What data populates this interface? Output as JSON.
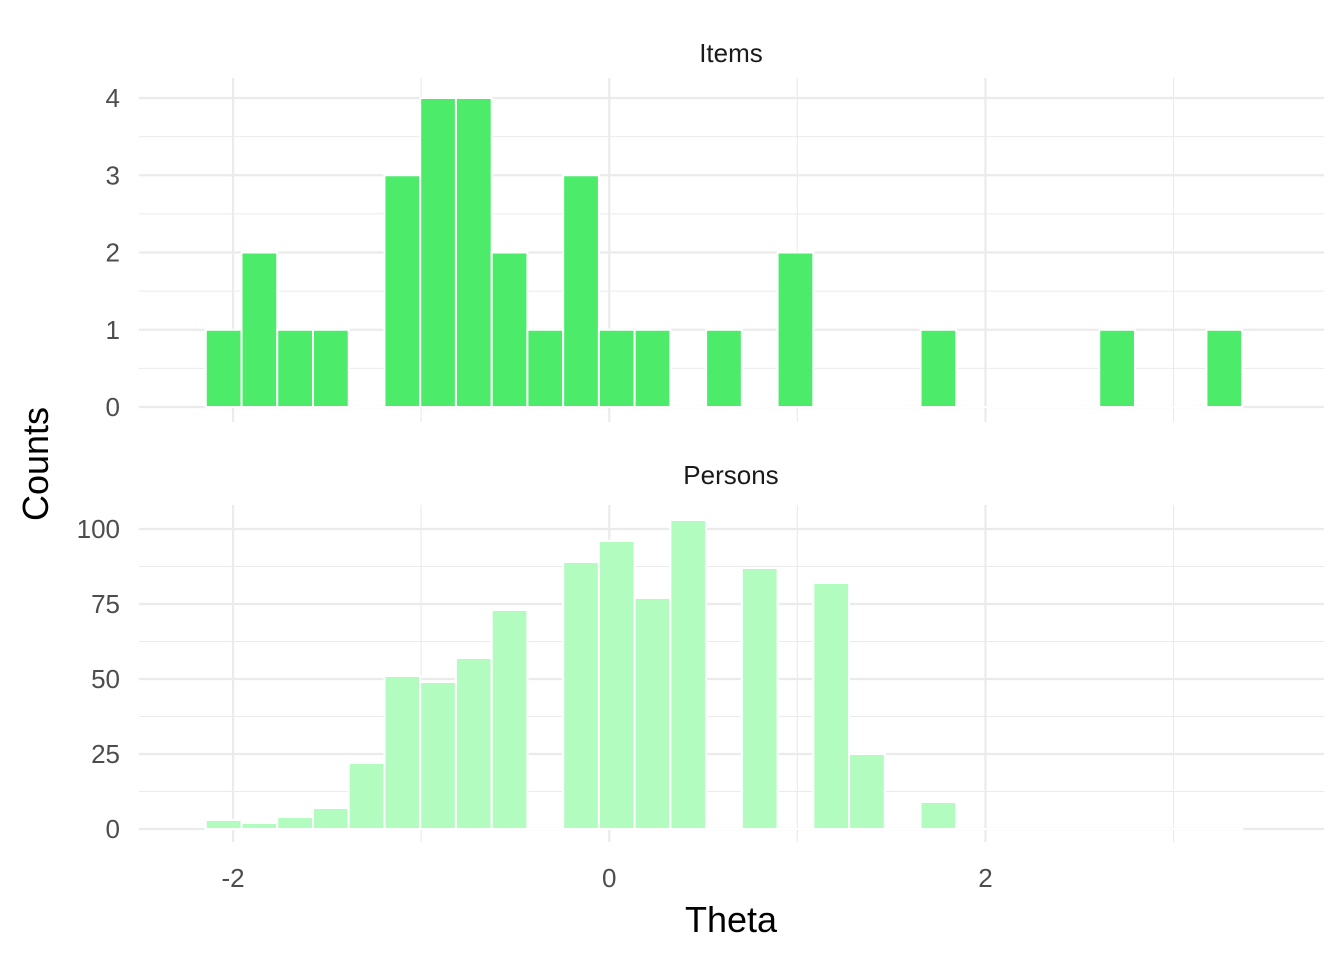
{
  "chart_data": {
    "type": "bar",
    "xlabel": "Theta",
    "ylabel": "Counts",
    "xlim": [
      -2.5,
      3.8
    ],
    "x_ticks": [
      -2,
      0,
      2
    ],
    "x_tick_labels": [
      "-2",
      "0",
      "2"
    ],
    "bin_width": 0.19,
    "bin_centers": [
      -2.05,
      -1.86,
      -1.67,
      -1.48,
      -1.29,
      -1.1,
      -0.91,
      -0.72,
      -0.53,
      -0.34,
      -0.15,
      0.04,
      0.23,
      0.42,
      0.61,
      0.8,
      0.99,
      1.18,
      1.37,
      1.56,
      1.75,
      1.94,
      2.13,
      2.32,
      2.51,
      2.7,
      2.89,
      3.08,
      3.27
    ],
    "grid": true,
    "panels": [
      {
        "label": "Items",
        "color": "#4ceb6a",
        "ylim": [
          0,
          4.25
        ],
        "y_ticks": [
          0,
          1,
          2,
          3,
          4
        ],
        "y_tick_labels": [
          "0",
          "1",
          "2",
          "3",
          "4"
        ],
        "values": [
          1,
          2,
          1,
          1,
          0,
          3,
          4,
          4,
          2,
          1,
          3,
          1,
          1,
          0,
          1,
          0,
          2,
          0,
          0,
          0,
          1,
          0,
          0,
          0,
          0,
          1,
          0,
          0,
          1
        ]
      },
      {
        "label": "Persons",
        "color": "#b3fcbf",
        "ylim": [
          0,
          108
        ],
        "y_ticks": [
          0,
          25,
          50,
          75,
          100
        ],
        "y_tick_labels": [
          "0",
          "25",
          "50",
          "75",
          "100"
        ],
        "values": [
          3,
          2,
          4,
          7,
          22,
          51,
          49,
          57,
          73,
          0,
          89,
          96,
          77,
          103,
          0,
          87,
          0,
          82,
          25,
          0,
          9,
          0,
          0,
          0,
          0,
          0,
          0,
          0,
          0
        ]
      }
    ]
  }
}
